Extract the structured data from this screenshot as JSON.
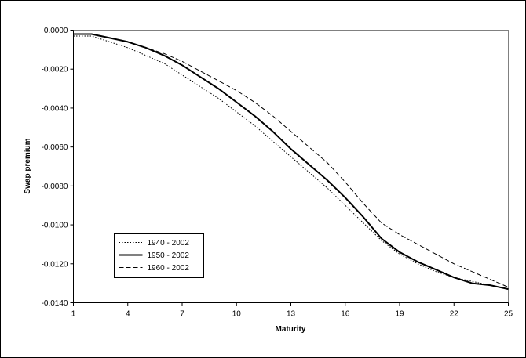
{
  "chart_data": {
    "type": "line",
    "xlabel": "Maturity",
    "ylabel": "Swap premium",
    "xlim": [
      1,
      25
    ],
    "ylim": [
      -0.014,
      0
    ],
    "x_ticks": [
      1,
      4,
      7,
      10,
      13,
      16,
      19,
      22,
      25
    ],
    "x_tick_labels": [
      "1",
      "4",
      "7",
      "10",
      "13",
      "16",
      "19",
      "22",
      "25"
    ],
    "y_ticks": [
      0,
      -0.002,
      -0.004,
      -0.006,
      -0.008,
      -0.01,
      -0.012,
      -0.014
    ],
    "y_tick_labels": [
      "0.0000",
      "-0.0020",
      "-0.0040",
      "-0.0060",
      "-0.0080",
      "-0.0100",
      "-0.0120",
      "-0.0140"
    ],
    "grid": false,
    "legend_position": "bottom-left",
    "x": [
      1,
      2,
      3,
      4,
      5,
      6,
      7,
      8,
      9,
      10,
      11,
      12,
      13,
      14,
      15,
      16,
      17,
      18,
      19,
      20,
      21,
      22,
      23,
      24,
      25
    ],
    "series": [
      {
        "name": "1940 - 2002",
        "style": "dotted",
        "color": "#000000",
        "values": [
          -0.0003,
          -0.0003,
          -0.0006,
          -0.0009,
          -0.0013,
          -0.0017,
          -0.0023,
          -0.0029,
          -0.0035,
          -0.0042,
          -0.0049,
          -0.0057,
          -0.0065,
          -0.0073,
          -0.0081,
          -0.009,
          -0.0099,
          -0.0108,
          -0.0115,
          -0.012,
          -0.0124,
          -0.0127,
          -0.0129,
          -0.0131,
          -0.0133
        ]
      },
      {
        "name": "1950 - 2002",
        "style": "solid",
        "color": "#000000",
        "values": [
          -0.0002,
          -0.0002,
          -0.0004,
          -0.0006,
          -0.0009,
          -0.0013,
          -0.0018,
          -0.0024,
          -0.003,
          -0.0037,
          -0.0044,
          -0.0052,
          -0.0061,
          -0.0069,
          -0.0077,
          -0.0086,
          -0.0096,
          -0.0107,
          -0.0114,
          -0.0119,
          -0.0123,
          -0.0127,
          -0.013,
          -0.0131,
          -0.0133
        ]
      },
      {
        "name": "1960 - 2002",
        "style": "dashed",
        "color": "#000000",
        "values": [
          -0.0002,
          -0.0002,
          -0.0004,
          -0.0006,
          -0.0009,
          -0.0012,
          -0.0016,
          -0.0021,
          -0.0026,
          -0.0031,
          -0.0037,
          -0.0044,
          -0.0052,
          -0.006,
          -0.0068,
          -0.0078,
          -0.0089,
          -0.0099,
          -0.0105,
          -0.011,
          -0.0115,
          -0.012,
          -0.0124,
          -0.0128,
          -0.0132
        ]
      }
    ]
  }
}
